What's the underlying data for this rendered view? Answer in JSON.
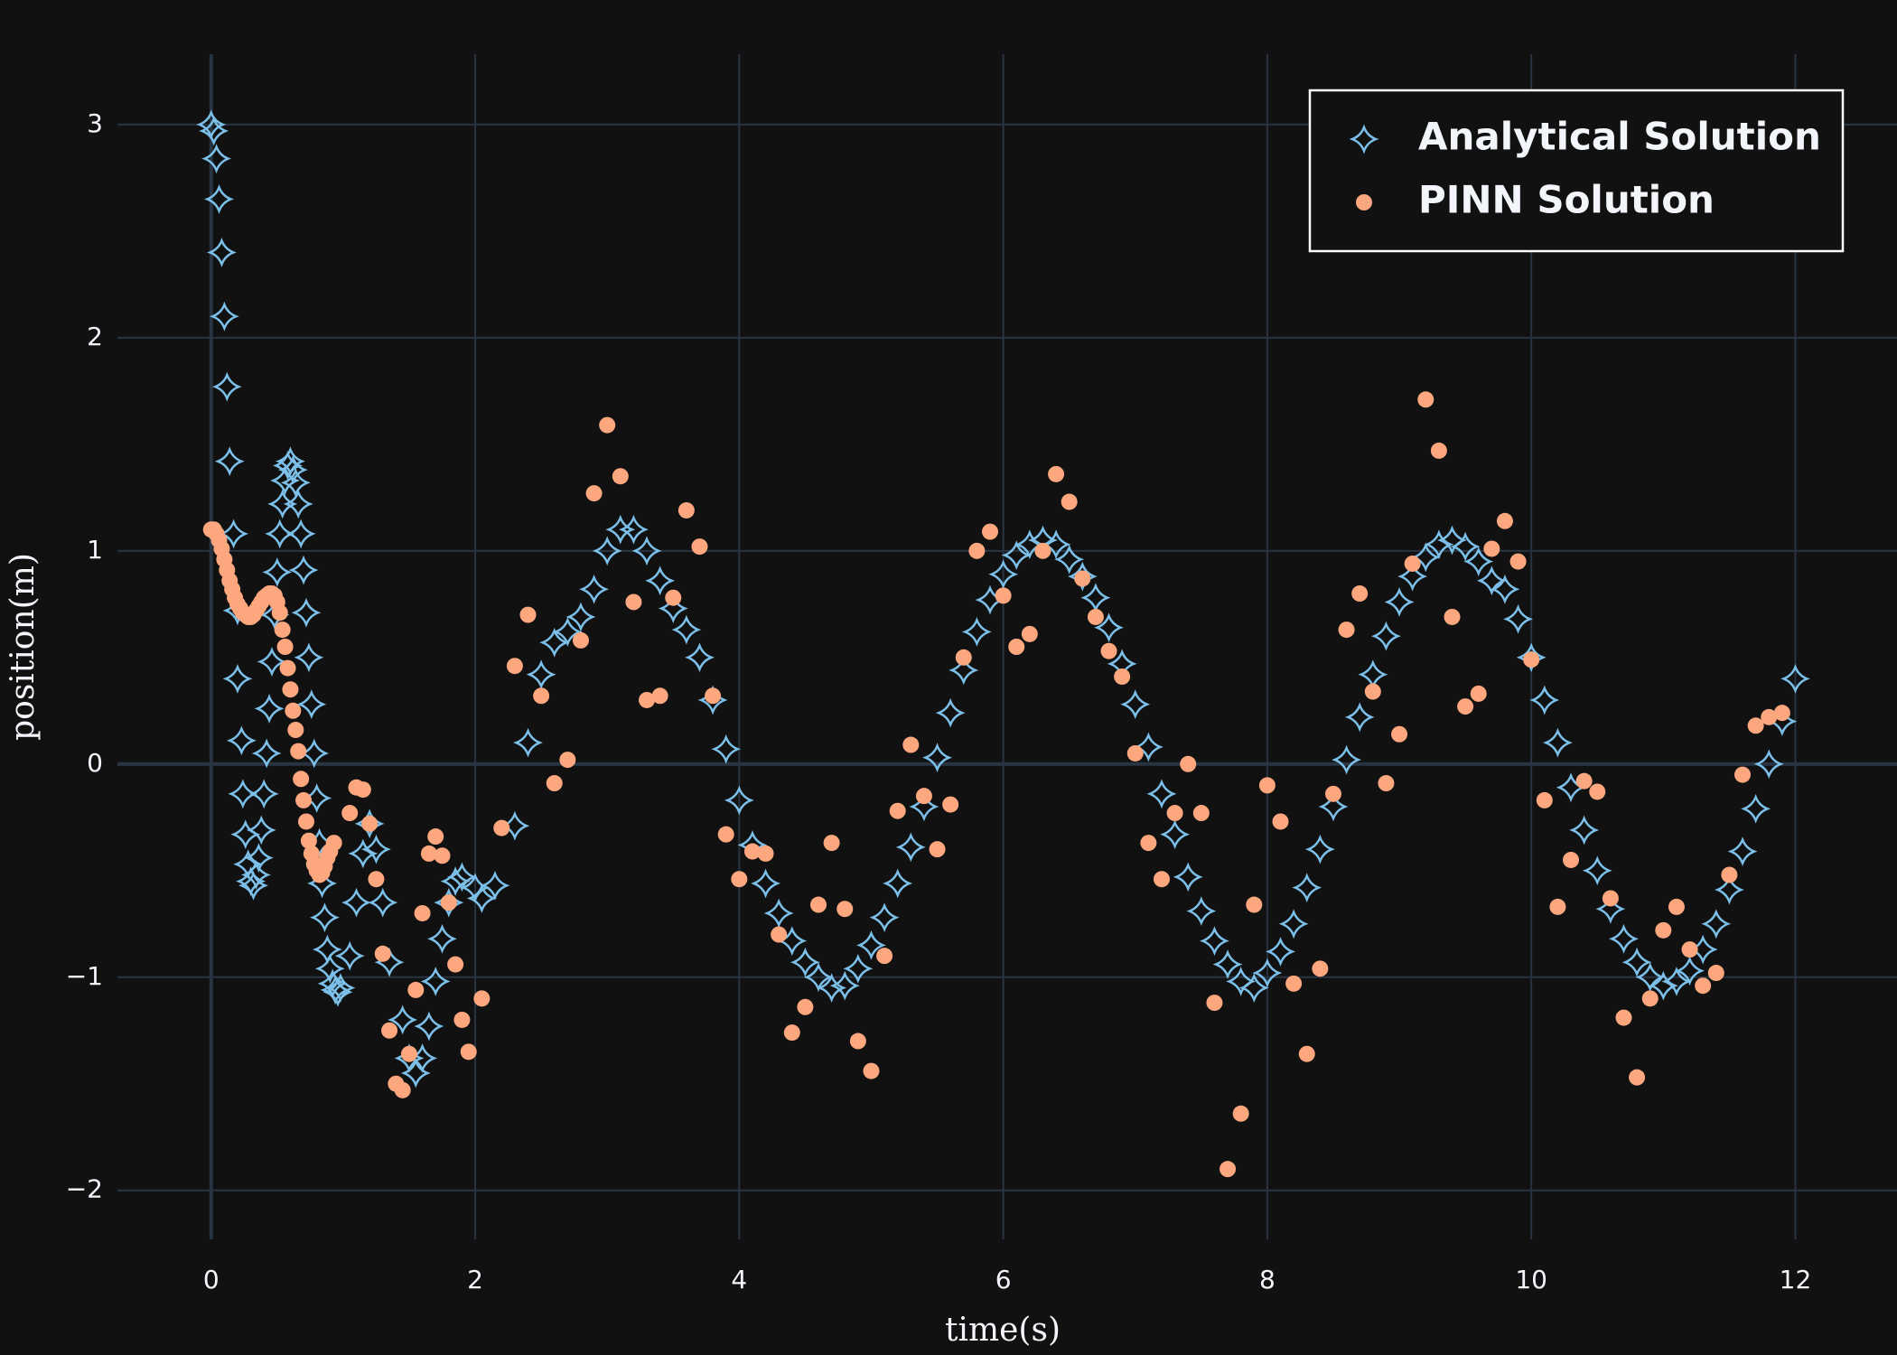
{
  "chart_data": {
    "type": "scatter",
    "x_label": "time(s)",
    "y_label": "position(m)",
    "xlim": [
      -0.71,
      12.77
    ],
    "ylim": [
      -2.23,
      3.33
    ],
    "xticks": [
      0,
      2,
      4,
      6,
      8,
      10,
      12
    ],
    "yticks": [
      {
        "value": -2,
        "label": "−2"
      },
      {
        "value": -1,
        "label": "−1"
      },
      0,
      1,
      2,
      3
    ],
    "grid": true,
    "legend": "top-right",
    "series": [
      {
        "name": "Analytical Solution",
        "color": "#7cc0ea",
        "marker": "star",
        "x": [
          0,
          0.02,
          0.04,
          0.06,
          0.08,
          0.1,
          0.12,
          0.14,
          0.17,
          0.2,
          0.2,
          0.23,
          0.24,
          0.26,
          0.28,
          0.3,
          0.32,
          0.34,
          0.36,
          0.38,
          0.4,
          0.42,
          0.44,
          0.46,
          0.48,
          0.5,
          0.52,
          0.54,
          0.56,
          0.58,
          0.6,
          0.62,
          0.64,
          0.66,
          0.68,
          0.7,
          0.72,
          0.74,
          0.76,
          0.78,
          0.8,
          0.82,
          0.84,
          0.86,
          0.88,
          0.9,
          0.92,
          0.94,
          0.96,
          0.98,
          1.05,
          1.1,
          1.15,
          1.2,
          1.25,
          1.3,
          1.35,
          1.45,
          1.5,
          1.55,
          1.6,
          1.65,
          1.7,
          1.75,
          1.8,
          1.85,
          1.9,
          2.0,
          2.05,
          2.15,
          2.3,
          2.4,
          2.5,
          2.6,
          2.7,
          2.8,
          2.9,
          3.0,
          3.1,
          3.2,
          3.3,
          3.4,
          3.5,
          3.6,
          3.7,
          3.8,
          3.9,
          4.0,
          4.1,
          4.2,
          4.3,
          4.4,
          4.5,
          4.6,
          4.7,
          4.8,
          4.9,
          5.0,
          5.1,
          5.2,
          5.3,
          5.4,
          5.5,
          5.6,
          5.7,
          5.8,
          5.9,
          6.0,
          6.1,
          6.2,
          6.3,
          6.4,
          6.5,
          6.6,
          6.7,
          6.8,
          6.9,
          7.0,
          7.1,
          7.2,
          7.3,
          7.4,
          7.5,
          7.6,
          7.7,
          7.8,
          7.9,
          8.0,
          8.1,
          8.2,
          8.3,
          8.4,
          8.5,
          8.6,
          8.7,
          8.8,
          8.9,
          9.0,
          9.1,
          9.2,
          9.3,
          9.4,
          9.5,
          9.6,
          9.7,
          9.8,
          9.9,
          10.0,
          10.1,
          10.2,
          10.3,
          10.4,
          10.5,
          10.6,
          10.7,
          10.8,
          10.9,
          11.0,
          11.1,
          11.2,
          11.3,
          11.4,
          11.5,
          11.6,
          11.7,
          11.8,
          11.9,
          12.0
        ],
        "values": [
          3,
          2.97,
          2.84,
          2.65,
          2.4,
          2.1,
          1.77,
          1.42,
          1.08,
          0.72,
          0.4,
          0.11,
          -0.14,
          -0.33,
          -0.47,
          -0.55,
          -0.57,
          -0.52,
          -0.44,
          -0.31,
          -0.14,
          0.05,
          0.26,
          0.48,
          0.7,
          0.9,
          1.08,
          1.22,
          1.33,
          1.4,
          1.42,
          1.38,
          1.32,
          1.22,
          1.08,
          0.91,
          0.71,
          0.5,
          0.28,
          0.05,
          -0.16,
          -0.37,
          -0.56,
          -0.72,
          -0.87,
          -0.96,
          -1.03,
          -1.06,
          -1.07,
          -1.05,
          -0.9,
          -0.65,
          -0.42,
          -0.28,
          -0.4,
          -0.65,
          -0.93,
          -1.2,
          -1.38,
          -1.45,
          -1.38,
          -1.23,
          -1.02,
          -0.82,
          -0.65,
          -0.55,
          -0.53,
          -0.58,
          -0.63,
          -0.57,
          -0.29,
          0.1,
          0.42,
          0.57,
          0.62,
          0.69,
          0.82,
          1.0,
          1.1,
          1.1,
          1.0,
          0.86,
          0.73,
          0.63,
          0.5,
          0.3,
          0.07,
          -0.17,
          -0.38,
          -0.56,
          -0.7,
          -0.83,
          -0.93,
          -1.0,
          -1.05,
          -1.04,
          -0.96,
          -0.85,
          -0.72,
          -0.56,
          -0.39,
          -0.2,
          0.03,
          0.24,
          0.44,
          0.62,
          0.77,
          0.89,
          0.98,
          1.03,
          1.05,
          1.03,
          0.96,
          0.88,
          0.78,
          0.64,
          0.47,
          0.28,
          0.08,
          -0.14,
          -0.33,
          -0.53,
          -0.69,
          -0.83,
          -0.94,
          -1.02,
          -1.05,
          -0.98,
          -0.88,
          -0.75,
          -0.58,
          -0.4,
          -0.2,
          0.02,
          0.22,
          0.42,
          0.6,
          0.76,
          0.88,
          0.97,
          1.03,
          1.05,
          1.02,
          0.95,
          0.86,
          0.82,
          0.68,
          0.5,
          0.3,
          0.1,
          -0.11,
          -0.31,
          -0.5,
          -0.68,
          -0.82,
          -0.93,
          -1.0,
          -1.04,
          -1.02,
          -0.97,
          -0.87,
          -0.75,
          -0.59,
          -0.41,
          -0.21,
          0.0,
          0.2,
          0.4
        ]
      },
      {
        "name": "PINN Solution",
        "color": "#fca77e",
        "marker": "circle",
        "x": [
          0,
          0.02,
          0.04,
          0.06,
          0.08,
          0.1,
          0.12,
          0.14,
          0.16,
          0.18,
          0.2,
          0.22,
          0.24,
          0.26,
          0.28,
          0.3,
          0.32,
          0.34,
          0.36,
          0.38,
          0.4,
          0.42,
          0.44,
          0.46,
          0.48,
          0.5,
          0.52,
          0.54,
          0.56,
          0.58,
          0.6,
          0.62,
          0.64,
          0.66,
          0.68,
          0.7,
          0.72,
          0.74,
          0.76,
          0.78,
          0.8,
          0.82,
          0.84,
          0.86,
          0.88,
          0.9,
          0.93,
          1.05,
          1.1,
          1.15,
          1.2,
          1.25,
          1.3,
          1.35,
          1.4,
          1.45,
          1.5,
          1.55,
          1.6,
          1.65,
          1.7,
          1.75,
          1.8,
          1.85,
          1.9,
          1.95,
          2.05,
          2.2,
          2.3,
          2.4,
          2.5,
          2.6,
          2.7,
          2.8,
          2.9,
          3.0,
          3.1,
          3.2,
          3.3,
          3.4,
          3.5,
          3.6,
          3.7,
          3.8,
          3.9,
          4.0,
          4.1,
          4.2,
          4.3,
          4.4,
          4.5,
          4.6,
          4.7,
          4.8,
          4.9,
          5.0,
          5.1,
          5.2,
          5.3,
          5.4,
          5.5,
          5.6,
          5.7,
          5.8,
          5.9,
          6.0,
          6.1,
          6.2,
          6.3,
          6.4,
          6.5,
          6.6,
          6.7,
          6.8,
          6.9,
          7.0,
          7.1,
          7.2,
          7.3,
          7.4,
          7.5,
          7.6,
          7.7,
          7.8,
          7.9,
          8.0,
          8.1,
          8.2,
          8.3,
          8.4,
          8.5,
          8.6,
          8.7,
          8.8,
          8.9,
          9.0,
          9.1,
          9.2,
          9.3,
          9.4,
          9.5,
          9.6,
          9.7,
          9.8,
          9.9,
          10.0,
          10.1,
          10.2,
          10.3,
          10.4,
          10.5,
          10.6,
          10.7,
          10.8,
          10.9,
          11.0,
          11.1,
          11.2,
          11.3,
          11.4,
          11.5,
          11.6,
          11.7,
          11.8,
          11.9
        ],
        "values": [
          1.1,
          1.1,
          1.08,
          1.05,
          1.01,
          0.96,
          0.91,
          0.86,
          0.82,
          0.78,
          0.75,
          0.73,
          0.71,
          0.7,
          0.69,
          0.69,
          0.7,
          0.72,
          0.74,
          0.76,
          0.78,
          0.79,
          0.8,
          0.8,
          0.79,
          0.76,
          0.71,
          0.63,
          0.55,
          0.45,
          0.35,
          0.25,
          0.16,
          0.06,
          -0.07,
          -0.17,
          -0.27,
          -0.36,
          -0.42,
          -0.47,
          -0.5,
          -0.52,
          -0.51,
          -0.48,
          -0.44,
          -0.41,
          -0.37,
          -0.23,
          -0.11,
          -0.12,
          -0.28,
          -0.54,
          -0.89,
          -1.25,
          -1.5,
          -1.53,
          -1.36,
          -1.06,
          -0.7,
          -0.42,
          -0.34,
          -0.43,
          -0.65,
          -0.94,
          -1.2,
          -1.35,
          -1.1,
          -0.3,
          0.46,
          0.7,
          0.32,
          -0.09,
          0.02,
          0.58,
          1.27,
          1.59,
          1.35,
          0.76,
          0.3,
          0.32,
          0.78,
          1.19,
          1.02,
          0.32,
          -0.33,
          -0.54,
          -0.41,
          -0.42,
          -0.8,
          -1.26,
          -1.14,
          -0.66,
          -0.37,
          -0.68,
          -1.3,
          -1.44,
          -0.9,
          -0.22,
          0.09,
          -0.15,
          -0.4,
          -0.19,
          0.5,
          1.0,
          1.09,
          0.79,
          0.55,
          0.61,
          1.0,
          1.36,
          1.23,
          0.87,
          0.69,
          0.53,
          0.41,
          0.05,
          -0.37,
          -0.54,
          -0.23,
          0.0,
          -0.23,
          -1.12,
          -1.9,
          -1.64,
          -0.66,
          -0.1,
          -0.27,
          -1.03,
          -1.36,
          -0.96,
          -0.14,
          0.63,
          0.8,
          0.34,
          -0.09,
          0.14,
          0.94,
          1.71,
          1.47,
          0.69,
          0.27,
          0.33,
          1.01,
          1.14,
          0.95,
          0.49,
          -0.17,
          -0.67,
          -0.45,
          -0.08,
          -0.13,
          -0.63,
          -1.19,
          -1.47,
          -1.1,
          -0.78,
          -0.67,
          -0.87,
          -1.04,
          -0.98,
          -0.52,
          -0.05,
          0.18,
          0.22,
          0.24
        ]
      }
    ]
  }
}
